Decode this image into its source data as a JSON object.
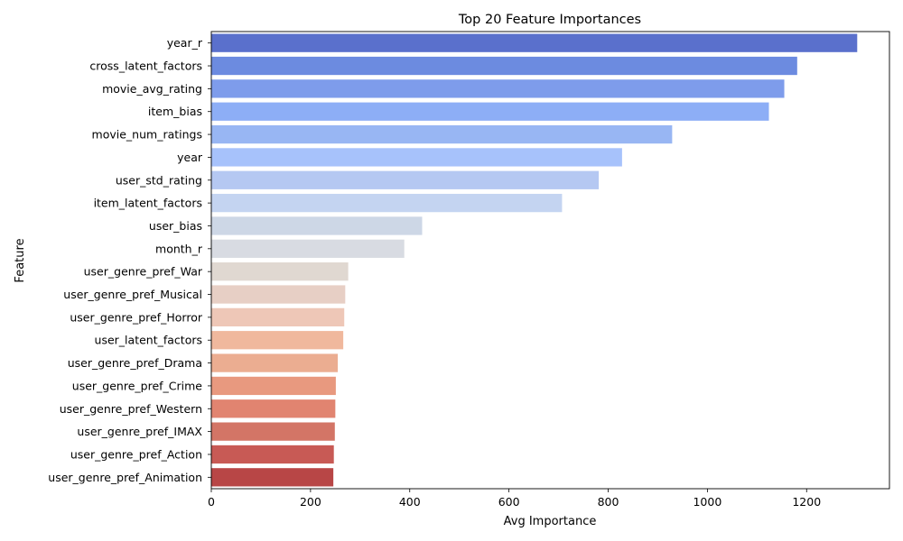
{
  "chart_data": {
    "type": "bar",
    "orientation": "horizontal",
    "title": "Top 20 Feature Importances",
    "xlabel": "Avg Importance",
    "ylabel": "Feature",
    "xlim": [
      0,
      1367
    ],
    "xticks": [
      0,
      200,
      400,
      600,
      800,
      1000,
      1200
    ],
    "grid": false,
    "categories": [
      "year_r",
      "cross_latent_factors",
      "movie_avg_rating",
      "item_bias",
      "movie_num_ratings",
      "year",
      "user_std_rating",
      "item_latent_factors",
      "user_bias",
      "month_r",
      "user_genre_pref_War",
      "user_genre_pref_Musical",
      "user_genre_pref_Horror",
      "user_latent_factors",
      "user_genre_pref_Drama",
      "user_genre_pref_Crime",
      "user_genre_pref_Western",
      "user_genre_pref_IMAX",
      "user_genre_pref_Action",
      "user_genre_pref_Animation"
    ],
    "values": [
      1302,
      1181,
      1155,
      1124,
      929,
      828,
      781,
      707,
      425,
      389,
      276,
      270,
      268,
      266,
      255,
      251,
      250,
      249,
      247,
      246
    ],
    "colors": [
      "#5a70cc",
      "#6c8be0",
      "#7e9ceb",
      "#8daef6",
      "#98b6f3",
      "#a7c2fb",
      "#b5c8f2",
      "#c4d4f1",
      "#cdd7e6",
      "#d8dbe2",
      "#e0d8d1",
      "#e7cfc5",
      "#eec7b7",
      "#f0b89d",
      "#ebad91",
      "#e8997f",
      "#e18470",
      "#d37566",
      "#c85a55",
      "#b84646"
    ]
  }
}
